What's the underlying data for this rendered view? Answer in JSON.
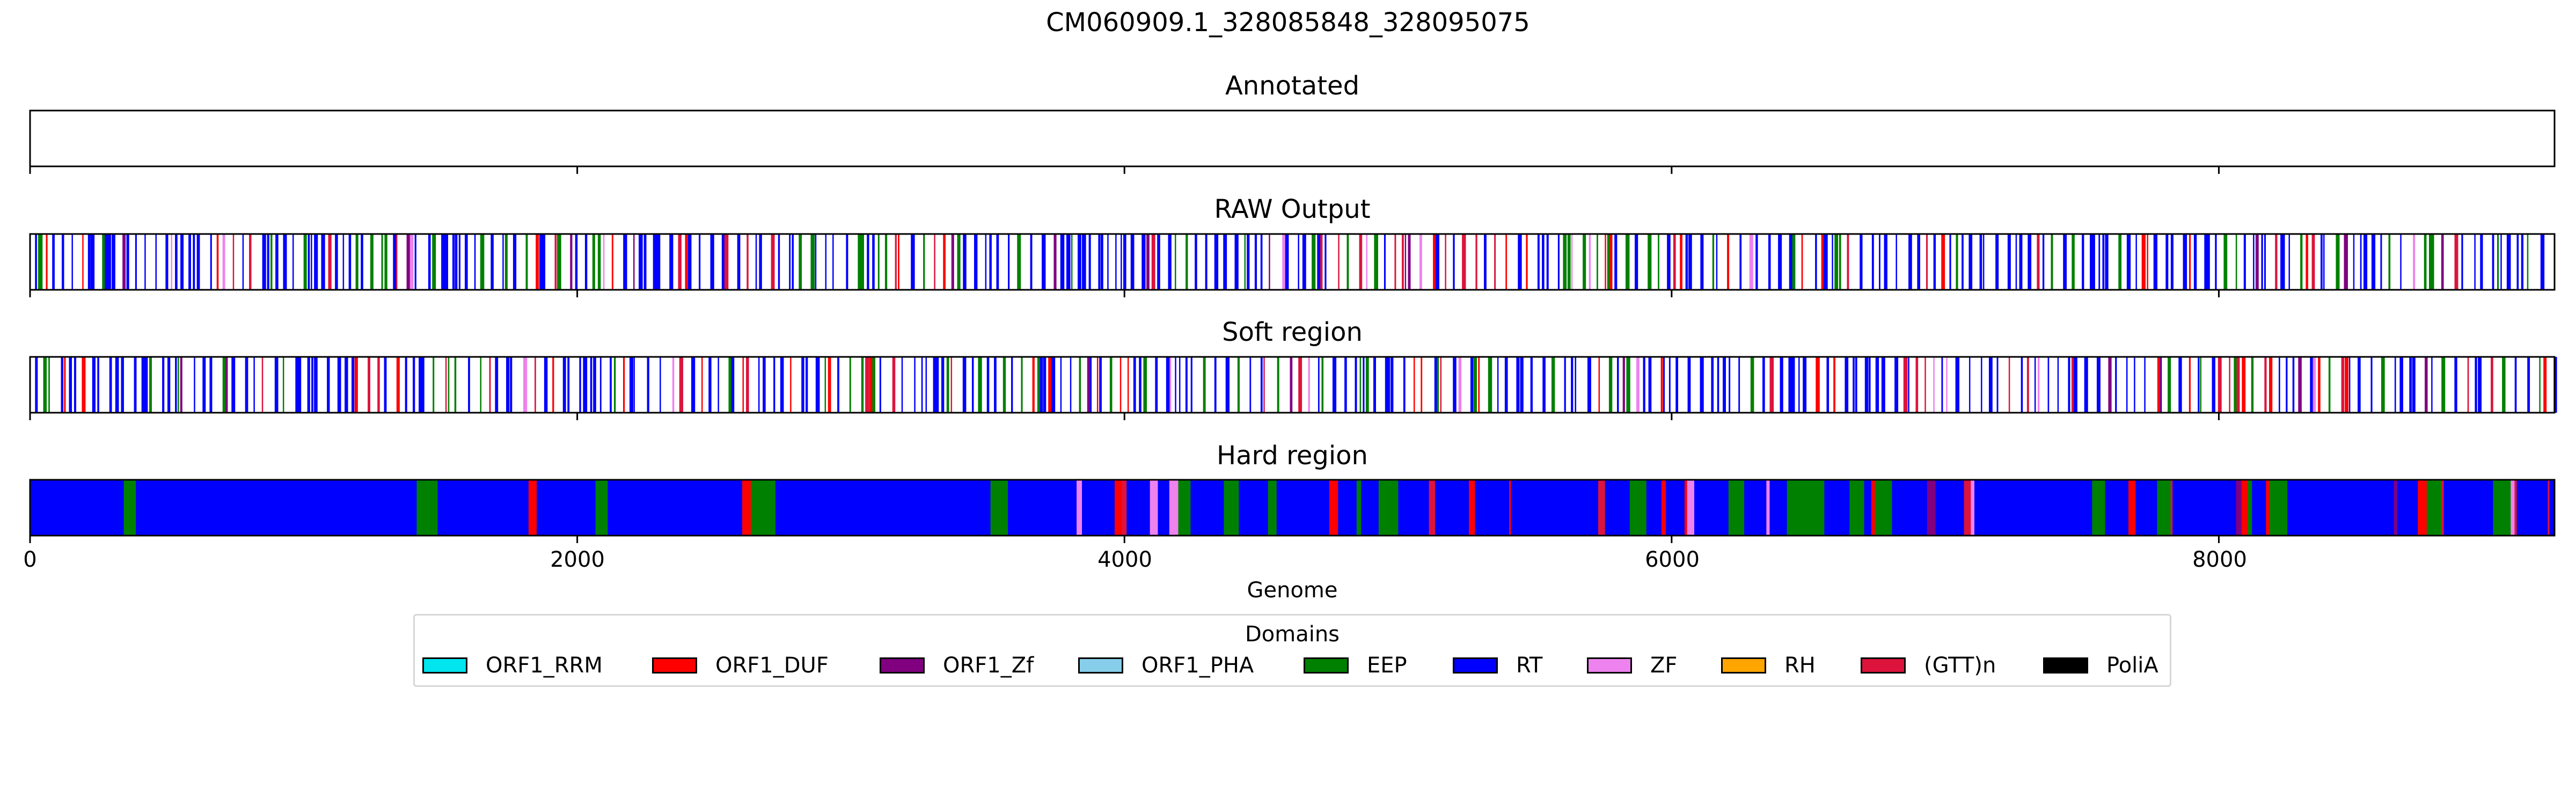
{
  "chart_data": {
    "type": "genome_track",
    "title": "CM060909.1_328085848_328095075",
    "xlabel": "Genome",
    "xlim": [
      0,
      9227
    ],
    "xticks": [
      0,
      2000,
      4000,
      6000,
      8000
    ],
    "tick_labels": [
      "0",
      "2000",
      "4000",
      "6000",
      "8000"
    ],
    "panels": [
      {
        "title": "Annotated",
        "segments": []
      },
      {
        "title": "RAW Output",
        "style": "sparse",
        "seed": 11
      },
      {
        "title": "Soft region",
        "style": "sparse",
        "seed": 23
      },
      {
        "title": "Hard region",
        "style": "dense",
        "seed": 37
      }
    ],
    "legend_title": "Domains",
    "legend_position": "bottom-center",
    "domains": [
      {
        "name": "ORF1_RRM",
        "color": "#00e5ee"
      },
      {
        "name": "ORF1_DUF",
        "color": "#ff0000"
      },
      {
        "name": "ORF1_Zf",
        "color": "#800080"
      },
      {
        "name": "ORF1_PHA",
        "color": "#87ceeb"
      },
      {
        "name": "EEP",
        "color": "#008000"
      },
      {
        "name": "RT",
        "color": "#0000ff"
      },
      {
        "name": "ZF",
        "color": "#ee82ee"
      },
      {
        "name": "RH",
        "color": "#ffa500"
      },
      {
        "name": "(GTT)n",
        "color": "#dc143c"
      },
      {
        "name": "PoliA",
        "color": "#000000"
      }
    ]
  }
}
